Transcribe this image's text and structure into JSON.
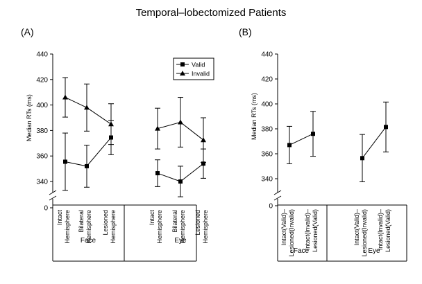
{
  "title": "Temporal–lobectomized Patients",
  "chart_data": [
    {
      "type": "line",
      "panel_label": "(A)",
      "ylabel": "Median RTs (ms)",
      "ylim": [
        330,
        440
      ],
      "yticks": [
        340,
        360,
        380,
        400,
        420,
        440
      ],
      "y_break": true,
      "y_break_label": "0",
      "groups": [
        {
          "name": "Face",
          "categories": [
            [
              "Intact",
              "Hemisphere"
            ],
            [
              "Bilateral",
              "Hemisphere"
            ],
            [
              "Lesioned",
              "Hemisphere"
            ]
          ]
        },
        {
          "name": "Eye",
          "categories": [
            [
              "Intact",
              "Hemisphere"
            ],
            [
              "Bilateral",
              "Hemisphere"
            ],
            [
              "Lesioned",
              "Hemisphere"
            ]
          ]
        }
      ],
      "legend": {
        "placement": "top-right",
        "entries": [
          "Valid",
          "Invalid"
        ]
      },
      "series": [
        {
          "name": "Valid",
          "marker": "square",
          "values": [
            [
              355.5,
              352,
              374.5
            ],
            [
              346.5,
              340,
              354
            ]
          ],
          "error": [
            [
              22.5,
              16.5,
              13.5
            ],
            [
              10.5,
              12,
              11.5
            ]
          ]
        },
        {
          "name": "Invalid",
          "marker": "triangle",
          "values": [
            [
              406,
              398,
              385
            ],
            [
              381.5,
              386.5,
              372.5
            ]
          ],
          "error": [
            [
              15.5,
              18.5,
              16
            ],
            [
              16,
              19.5,
              17.5
            ]
          ]
        }
      ]
    },
    {
      "type": "line",
      "panel_label": "(B)",
      "ylabel": "Median RTs (ms)",
      "ylim": [
        330,
        440
      ],
      "yticks": [
        340,
        360,
        380,
        400,
        420,
        440
      ],
      "y_break": true,
      "y_break_label": "0",
      "groups": [
        {
          "name": "Face",
          "categories": [
            [
              "Intact(Valid)–",
              "Lesioned(Invalid)"
            ],
            [
              "Intact(Invalid)–",
              "Lesioned(Valid)"
            ]
          ]
        },
        {
          "name": "Eye",
          "categories": [
            [
              "Intact(Valid)–",
              "Lesioned(Invalid)"
            ],
            [
              "Intact(Invalid)–",
              "Lesioned(Valid)"
            ]
          ]
        }
      ],
      "series": [
        {
          "marker": "square",
          "values": [
            [
              367,
              376
            ],
            [
              356.5,
              381.5
            ]
          ],
          "error": [
            [
              15,
              18
            ],
            [
              19,
              20
            ]
          ]
        }
      ]
    }
  ]
}
